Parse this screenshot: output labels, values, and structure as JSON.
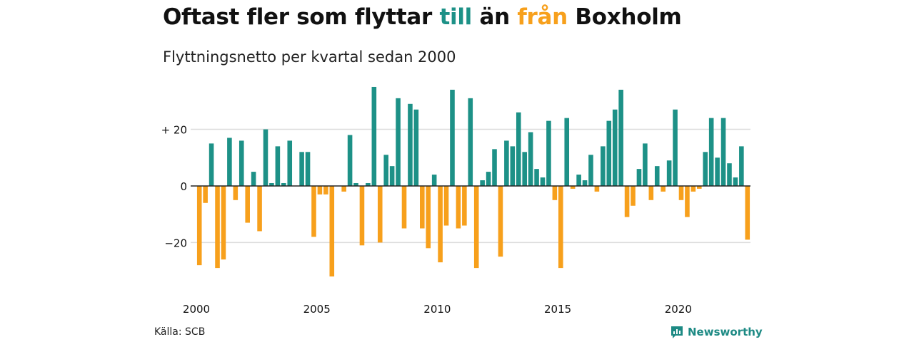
{
  "header": {
    "title_parts": [
      {
        "text": "Oftast fler som flyttar ",
        "role": "plain"
      },
      {
        "text": "till",
        "role": "positive"
      },
      {
        "text": " än ",
        "role": "plain"
      },
      {
        "text": "från",
        "role": "negative"
      },
      {
        "text": " Boxholm",
        "role": "plain"
      }
    ],
    "subtitle": "Flyttningsnetto per kvartal sedan 2000"
  },
  "footer": {
    "source": "Källa: SCB",
    "brand": "Newsworthy",
    "brand_icon": "newsworthy-logo-icon"
  },
  "colors": {
    "positive": "#1d9187",
    "negative": "#f7a01c",
    "text": "#111111",
    "grid": "#dddddd",
    "zero_line": "#222222",
    "brand": "#1d8a84"
  },
  "chart_data": {
    "type": "bar",
    "title": "",
    "subtitle": "Flyttningsnetto per kvartal sedan 2000",
    "xlabel": "",
    "ylabel": "",
    "x_start": {
      "year": 2000,
      "quarter": 1
    },
    "x_end": {
      "year": 2023,
      "quarter": 1
    },
    "x_ticks": [
      2000,
      2005,
      2010,
      2015,
      2020
    ],
    "x_tick_labels": [
      "2000",
      "2005",
      "2010",
      "2015",
      "2020"
    ],
    "y_ticks": [
      -20,
      0,
      20
    ],
    "y_tick_labels": [
      "−20",
      "0",
      "+ 20"
    ],
    "ylim": [
      -33,
      36
    ],
    "grid": "horizontal",
    "legend": "none",
    "values": [
      -28,
      -6,
      15,
      -29,
      -26,
      17,
      -5,
      16,
      -13,
      5,
      -16,
      20,
      1,
      14,
      1,
      16,
      0,
      12,
      12,
      -18,
      -3,
      -3,
      -32,
      0,
      -2,
      18,
      1,
      -21,
      1,
      35,
      -20,
      11,
      7,
      31,
      -15,
      29,
      27,
      -15,
      -22,
      4,
      -27,
      -14,
      34,
      -15,
      -14,
      31,
      -29,
      2,
      5,
      13,
      -25,
      16,
      14,
      26,
      12,
      19,
      6,
      3,
      23,
      -5,
      -29,
      24,
      -1,
      4,
      2,
      11,
      -2,
      14,
      23,
      27,
      34,
      -11,
      -7,
      6,
      15,
      -5,
      7,
      -2,
      9,
      27,
      -5,
      -11,
      -2,
      -1,
      12,
      24,
      10,
      24,
      8,
      3,
      14,
      -19
    ]
  }
}
